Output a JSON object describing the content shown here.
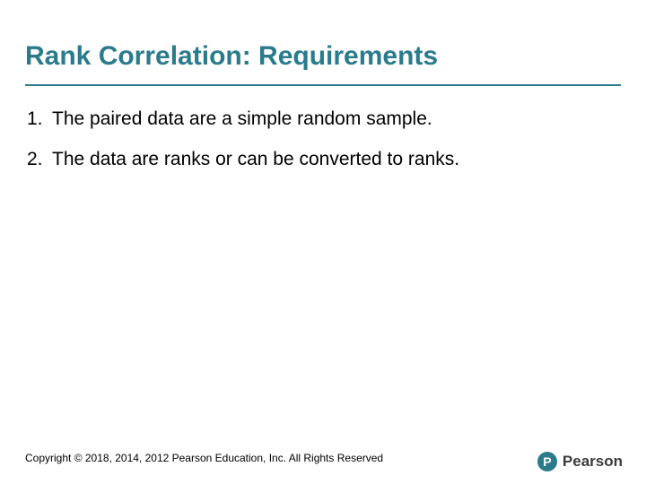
{
  "colors": {
    "title": "#2a7b8c",
    "underline": "#2a7b8c",
    "body": "#000000",
    "footer": "#000000",
    "logo_circle": "#2a7b8c",
    "logo_text": "#3b3b3b",
    "background": "#ffffff"
  },
  "typography": {
    "title_fontsize": 30,
    "body_fontsize": 21,
    "footer_fontsize": 12,
    "logo_fontsize": 17,
    "logo_letter_fontsize": 14
  },
  "title": "Rank Correlation: Requirements",
  "list": [
    {
      "number": "1.",
      "text": "The paired data are a simple random sample."
    },
    {
      "number": "2.",
      "text": "The data are ranks or can be converted to ranks."
    }
  ],
  "footer": "Copyright © 2018, 2014, 2012 Pearson Education, Inc. All Rights Reserved",
  "logo": {
    "letter": "P",
    "name": "Pearson"
  }
}
